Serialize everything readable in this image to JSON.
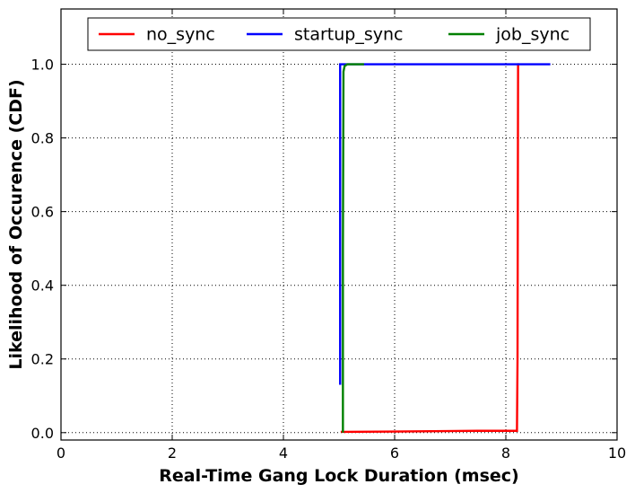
{
  "chart_data": {
    "type": "line",
    "xlabel": "Real-Time Gang Lock Duration (msec)",
    "ylabel": "Likelihood of Occurence (CDF)",
    "xlim": [
      0,
      10
    ],
    "ylim": [
      -0.02,
      1.15
    ],
    "x_ticks": [
      0,
      2,
      4,
      6,
      8,
      10
    ],
    "x_tick_labels": [
      "0",
      "2",
      "4",
      "6",
      "8",
      "10"
    ],
    "y_ticks": [
      0.0,
      0.2,
      0.4,
      0.6,
      0.8,
      1.0
    ],
    "y_tick_labels": [
      "0.0",
      "0.2",
      "0.4",
      "0.6",
      "0.8",
      "1.0"
    ],
    "grid": true,
    "legend_position": "top",
    "series": [
      {
        "name": "no_sync",
        "color": "#ff0000",
        "x": [
          5.05,
          5.05,
          6.0,
          7.5,
          8.2,
          8.21,
          8.22,
          8.24
        ],
        "y": [
          0.0,
          0.002,
          0.003,
          0.005,
          0.005,
          0.2,
          1.0,
          1.0
        ]
      },
      {
        "name": "startup_sync",
        "color": "#0000ff",
        "x": [
          5.02,
          5.02,
          5.05,
          6.0,
          8.8
        ],
        "y": [
          0.13,
          1.0,
          1.0,
          1.0,
          1.0
        ]
      },
      {
        "name": "job_sync",
        "color": "#008000",
        "x": [
          5.07,
          5.07,
          5.08,
          5.1,
          5.15,
          5.45
        ],
        "y": [
          0.0,
          0.5,
          0.98,
          0.995,
          1.0,
          1.0
        ]
      }
    ]
  }
}
